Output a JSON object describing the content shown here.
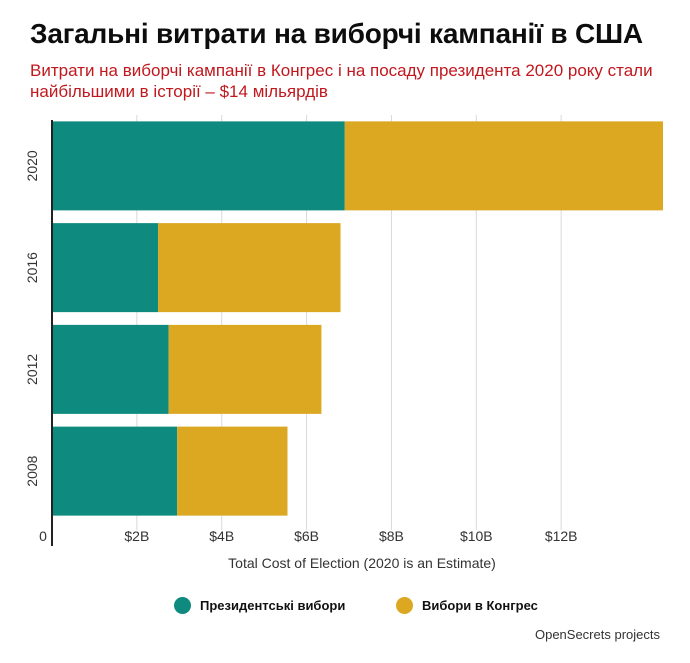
{
  "title": "Загальні витрати на виборчі кампанії в США",
  "subtitle": "Витрати на виборчі кампанії в Конгрес і на посаду президента 2020 року стали найбільшими в історії – $14 мільярдів",
  "source": "OpenSecrets projects",
  "colors": {
    "presidential": "#0e8a7e",
    "congress": "#dca822",
    "grid": "#d9d9d9",
    "axis": "#222222"
  },
  "chart_data": {
    "type": "bar",
    "orientation": "horizontal",
    "stacked": true,
    "categories": [
      "2020",
      "2016",
      "2012",
      "2008"
    ],
    "series": [
      {
        "name": "Президентські вибори",
        "values": [
          6.9,
          2.5,
          2.75,
          2.95
        ]
      },
      {
        "name": "Вибори в Конгрес",
        "values": [
          7.5,
          4.3,
          3.6,
          2.6
        ]
      }
    ],
    "xlabel": "Total Cost of Election (2020 is an Estimate)",
    "ylabel": "",
    "xlim": [
      0,
      14.4
    ],
    "x_ticks": [
      0,
      2,
      4,
      6,
      8,
      10,
      12
    ],
    "x_tick_labels": [
      "0",
      "$2B",
      "$4B",
      "$6B",
      "$8B",
      "$10B",
      "$12B"
    ],
    "grid": true,
    "legend": "bottom"
  }
}
